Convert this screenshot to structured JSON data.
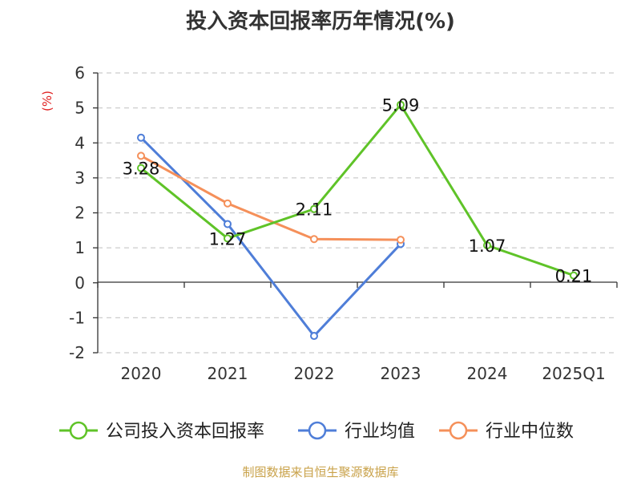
{
  "chart_data": {
    "type": "line",
    "title": "投入资本回报率历年情况(%)",
    "unit_label": "(%)",
    "categories": [
      "2020",
      "2021",
      "2022",
      "2023",
      "2024",
      "2025Q1"
    ],
    "ylim": [
      -2,
      6
    ],
    "yticks": [
      -2,
      -1,
      0,
      1,
      2,
      3,
      4,
      5,
      6
    ],
    "grid": true,
    "legend_position": "bottom",
    "series": [
      {
        "name": "公司投入资本回报率",
        "color": "#5fc328",
        "values": [
          3.28,
          1.27,
          2.11,
          5.09,
          1.07,
          0.21
        ],
        "show_labels": true
      },
      {
        "name": "行业均值",
        "color": "#4f7ed8",
        "values": [
          4.15,
          1.68,
          -1.52,
          1.11,
          null,
          null
        ],
        "show_labels": false
      },
      {
        "name": "行业中位数",
        "color": "#f5905a",
        "values": [
          3.63,
          2.27,
          1.25,
          1.23,
          null,
          null
        ],
        "show_labels": false
      }
    ]
  },
  "colors": {
    "unit_label": "#e02020",
    "source": "#c9a24a",
    "axis": "#333333",
    "grid": "#cccccc"
  },
  "source": "制图数据来自恒生聚源数据库"
}
